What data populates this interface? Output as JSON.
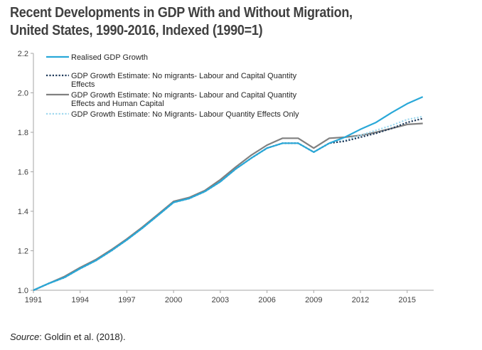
{
  "chart_data": {
    "type": "line",
    "title": "Recent Developments in GDP With and Without Migration, United States, 1990-2016, Indexed (1990=1)",
    "xlabel": "",
    "ylabel": "",
    "xlim": [
      1991,
      2016.7
    ],
    "ylim": [
      1.0,
      2.2
    ],
    "x_ticks": [
      "1991",
      "1994",
      "1997",
      "2000",
      "2003",
      "2006",
      "2009",
      "2012",
      "2015"
    ],
    "y_ticks": [
      "1.0",
      "1.2",
      "1.4",
      "1.6",
      "1.8",
      "2.0",
      "2.2"
    ],
    "grid": false,
    "legend_position": "top-left",
    "x": [
      1991,
      1992,
      1993,
      1994,
      1995,
      1996,
      1997,
      1998,
      1999,
      2000,
      2001,
      2002,
      2003,
      2004,
      2005,
      2006,
      2007,
      2008,
      2009,
      2010,
      2011,
      2012,
      2013,
      2014,
      2015,
      2016
    ],
    "series": [
      {
        "name": "Realised GDP Growth",
        "color": "#29a8d8",
        "style": "solid",
        "values": [
          1.0,
          1.035,
          1.065,
          1.11,
          1.15,
          1.2,
          1.255,
          1.315,
          1.38,
          1.445,
          1.465,
          1.5,
          1.55,
          1.615,
          1.67,
          1.72,
          1.745,
          1.745,
          1.7,
          1.745,
          1.775,
          1.815,
          1.85,
          1.9,
          1.945,
          1.98
        ]
      },
      {
        "name": "GDP Growth Estimate:  No migrants- Labour and Capital Quantity Effects",
        "color": "#1f3a5a",
        "style": "dotted",
        "values": [
          1.0,
          1.035,
          1.065,
          1.11,
          1.15,
          1.2,
          1.255,
          1.315,
          1.38,
          1.445,
          1.465,
          1.5,
          1.55,
          1.615,
          1.67,
          1.72,
          1.745,
          1.745,
          1.7,
          1.745,
          1.755,
          1.775,
          1.795,
          1.82,
          1.85,
          1.87
        ]
      },
      {
        "name": "GDP Growth Estimate:  No migrants- Labour and Capital Quantity Effects and Human Capital",
        "color": "#808080",
        "style": "solid",
        "values": [
          1.0,
          1.035,
          1.07,
          1.115,
          1.155,
          1.205,
          1.26,
          1.32,
          1.385,
          1.45,
          1.47,
          1.505,
          1.56,
          1.625,
          1.685,
          1.735,
          1.77,
          1.77,
          1.72,
          1.77,
          1.775,
          1.785,
          1.8,
          1.82,
          1.84,
          1.845
        ]
      },
      {
        "name": "GDP Growth Estimate: No Migrants- Labour Quantity Effects Only",
        "color": "#9fd8ee",
        "style": "dotted",
        "values": [
          1.0,
          1.035,
          1.065,
          1.11,
          1.15,
          1.2,
          1.255,
          1.315,
          1.38,
          1.445,
          1.465,
          1.5,
          1.55,
          1.615,
          1.67,
          1.72,
          1.745,
          1.745,
          1.7,
          1.745,
          1.76,
          1.785,
          1.81,
          1.835,
          1.865,
          1.88
        ]
      }
    ]
  },
  "source": {
    "label": "Source",
    "text": ": Goldin et al. (2018)."
  }
}
